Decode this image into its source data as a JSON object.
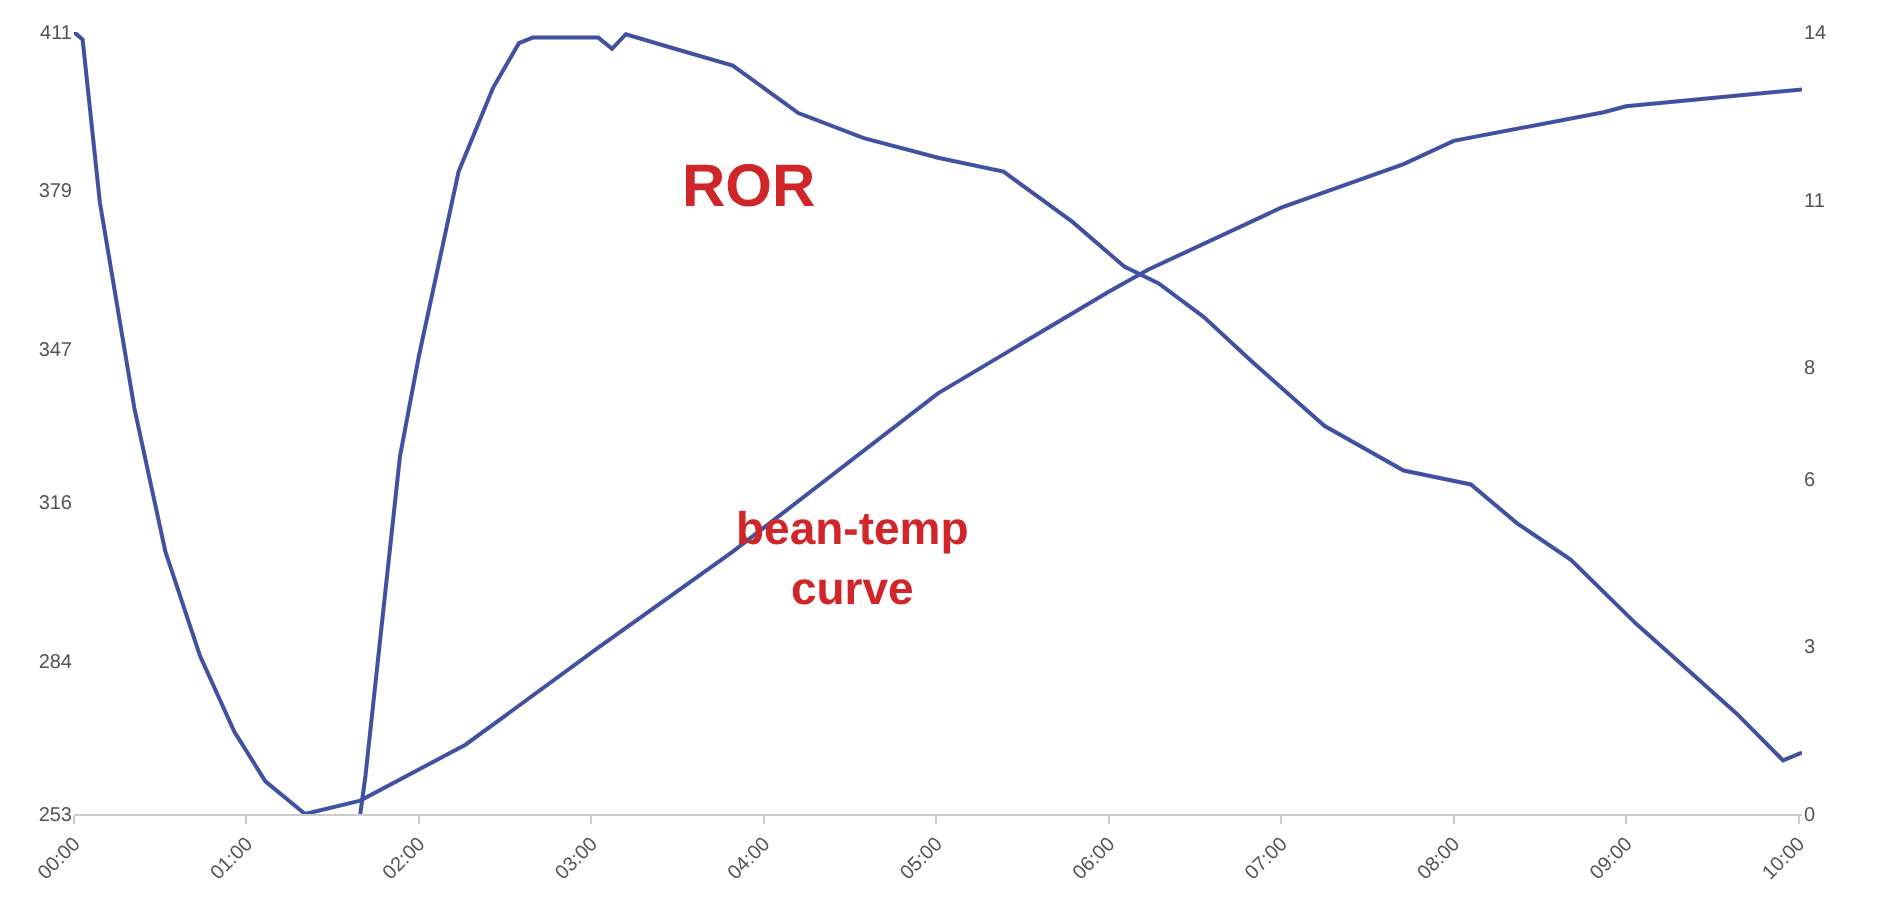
{
  "chart_data": {
    "type": "line",
    "xlim": [
      0,
      10.02
    ],
    "xticks": [
      {
        "value": 0,
        "label": "00:00"
      },
      {
        "value": 1,
        "label": "01:00"
      },
      {
        "value": 2,
        "label": "02:00"
      },
      {
        "value": 3,
        "label": "03:00"
      },
      {
        "value": 4,
        "label": "04:00"
      },
      {
        "value": 5,
        "label": "05:00"
      },
      {
        "value": 6,
        "label": "06:00"
      },
      {
        "value": 7,
        "label": "07:00"
      },
      {
        "value": 8,
        "label": "08:00"
      },
      {
        "value": 9,
        "label": "09:00"
      },
      {
        "value": 10,
        "label": "10:00"
      }
    ],
    "ylim": [
      253,
      411
    ],
    "yticks": [
      253,
      284,
      316,
      347,
      379,
      411
    ],
    "y2lim": [
      0,
      14
    ],
    "y2ticks": [
      0,
      3,
      6,
      8,
      11,
      14
    ],
    "line_style": "solid",
    "marker": "none",
    "grid": false,
    "series": [
      {
        "color": "#3f51a0",
        "x": [
          0,
          0.05,
          0.15,
          0.35,
          0.53,
          0.73,
          0.93,
          1.11,
          1.34,
          1.66,
          2.27,
          3.04,
          3.82,
          5.01,
          6,
          6.23,
          7,
          7.71,
          8,
          8.87,
          9,
          10.02
        ],
        "values": [
          411,
          409.5,
          376.6,
          335,
          306,
          285,
          269.6,
          259.6,
          253,
          255.7,
          267,
          286.6,
          306,
          338,
          358.5,
          363,
          375.5,
          384.3,
          389,
          394.8,
          396,
          399.4
        ]
      },
      {
        "color": "#3f51a0",
        "axis": "y2",
        "x": [
          1.66,
          1.69,
          1.89,
          2,
          2.23,
          2.43,
          2.58,
          2.66,
          3.04,
          3.12,
          3.2,
          3.43,
          3.82,
          4.2,
          4.58,
          5.01,
          5.39,
          5.79,
          6.09,
          6.29,
          6.55,
          6.83,
          7.25,
          7.71,
          8.1,
          8.37,
          8.68,
          9.06,
          9.26,
          9.64,
          9.91,
          10.02
        ],
        "values": [
          0,
          0.68,
          6.4,
          8.2,
          11.5,
          13,
          13.8,
          13.9,
          13.9,
          13.7,
          13.96,
          13.75,
          13.4,
          12.55,
          12.1,
          11.75,
          11.5,
          10.6,
          9.8,
          9.5,
          8.9,
          8.1,
          6.95,
          6.15,
          5.9,
          5.2,
          4.55,
          3.4,
          2.85,
          1.8,
          0.96,
          1.1
        ]
      }
    ],
    "annotations": [
      "ROR",
      "bean-temp\ncurve"
    ]
  }
}
